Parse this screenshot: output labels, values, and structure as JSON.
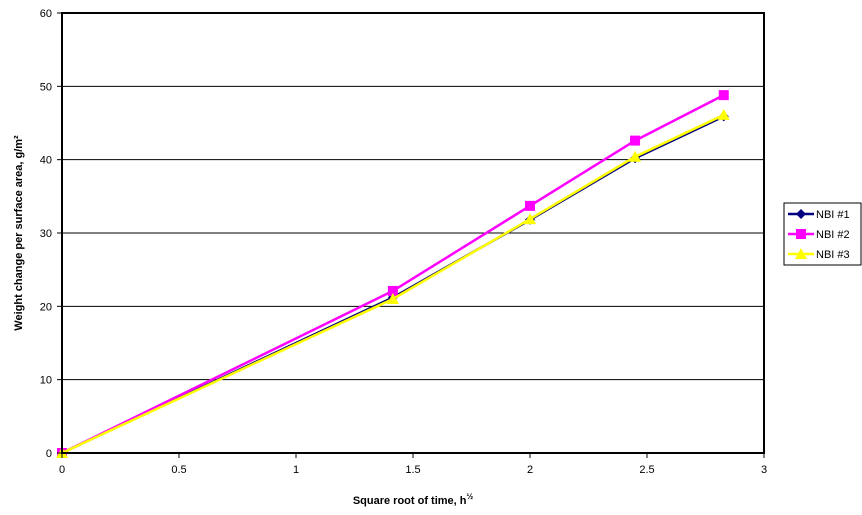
{
  "chart_data": {
    "type": "line",
    "xlabel": "Square root of time, h",
    "xlabel_sup": "½",
    "ylabel": "Weight change per surface area, g/m²",
    "xlim": [
      0,
      3
    ],
    "ylim": [
      0,
      60
    ],
    "x_ticks": [
      "0",
      "0.5",
      "1",
      "1.5",
      "2",
      "2.5",
      "3"
    ],
    "y_ticks": [
      "0",
      "10",
      "20",
      "30",
      "40",
      "50",
      "60"
    ],
    "x_tick_values": [
      0,
      0.5,
      1,
      1.5,
      2,
      2.5,
      3
    ],
    "y_tick_values": [
      0,
      10,
      20,
      30,
      40,
      50,
      60
    ],
    "grid": "horizontal major gridlines",
    "legend_position": "right",
    "series": [
      {
        "name": "NBI #1",
        "color": "#000080",
        "marker": "diamond",
        "x": [
          0,
          1.414,
          2,
          2.449,
          2.828
        ],
        "y": [
          0,
          21.2,
          31.8,
          40.2,
          45.9
        ]
      },
      {
        "name": "NBI #2",
        "color": "#FF00FF",
        "marker": "square",
        "x": [
          0,
          1.414,
          2,
          2.449,
          2.828
        ],
        "y": [
          0,
          22.1,
          33.7,
          42.6,
          48.8
        ]
      },
      {
        "name": "NBI #3",
        "color": "#FFFF00",
        "marker": "triangle",
        "x": [
          0,
          1.414,
          2,
          2.449,
          2.828
        ],
        "y": [
          0,
          21.0,
          31.9,
          40.4,
          46.1
        ]
      }
    ]
  }
}
